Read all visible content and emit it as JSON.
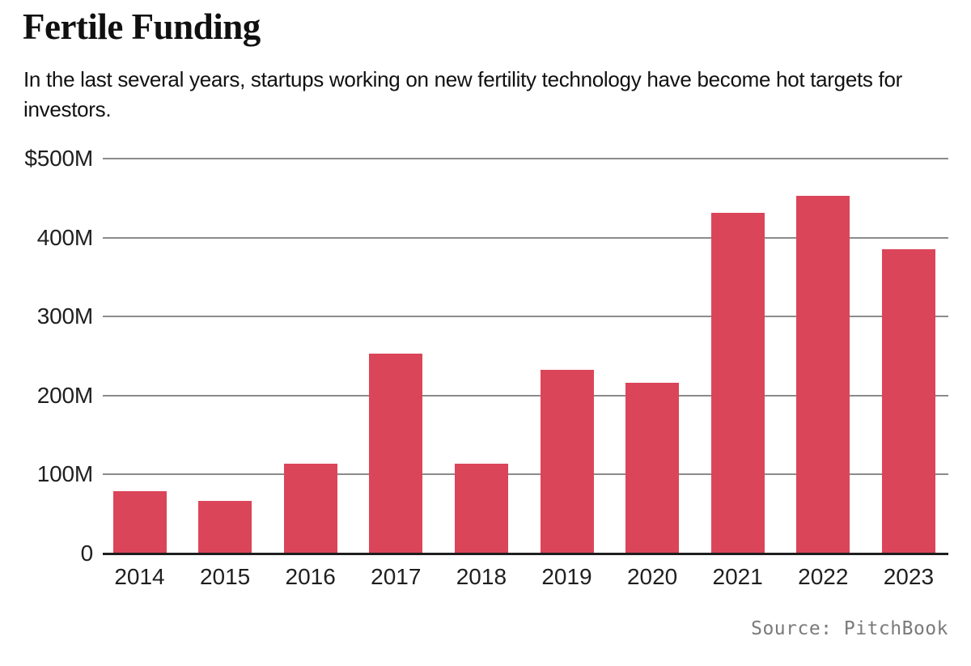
{
  "header": {
    "title": "Fertile Funding",
    "subtitle": "In the last several years, startups working on new fertility technology have become hot targets for investors."
  },
  "chart_data": {
    "type": "bar",
    "title": "Fertile Funding",
    "subtitle": "In the last several years, startups working on new fertility technology have become hot targets for investors.",
    "categories": [
      "2014",
      "2015",
      "2016",
      "2017",
      "2018",
      "2019",
      "2020",
      "2021",
      "2022",
      "2023"
    ],
    "values": [
      79,
      67,
      114,
      253,
      114,
      233,
      216,
      431,
      453,
      385
    ],
    "xlabel": "",
    "ylabel": "",
    "ylim": [
      0,
      500
    ],
    "y_ticks": [
      {
        "label": "$500M",
        "value": 500
      },
      {
        "label": "400M",
        "value": 400
      },
      {
        "label": "300M",
        "value": 300
      },
      {
        "label": "200M",
        "value": 200
      },
      {
        "label": "100M",
        "value": 100
      },
      {
        "label": "0",
        "value": 0
      }
    ],
    "grid": true,
    "legend_position": "none",
    "source": "Source: PitchBook"
  },
  "footer": {
    "source": "Source: PitchBook"
  },
  "colors": {
    "bar": "#DB4559",
    "gridline": "#8B8B8B",
    "axis": "#1E1E1E",
    "text": "#1F1F1F",
    "source_text": "#7A7A7A",
    "background": "#FFFFFF"
  }
}
